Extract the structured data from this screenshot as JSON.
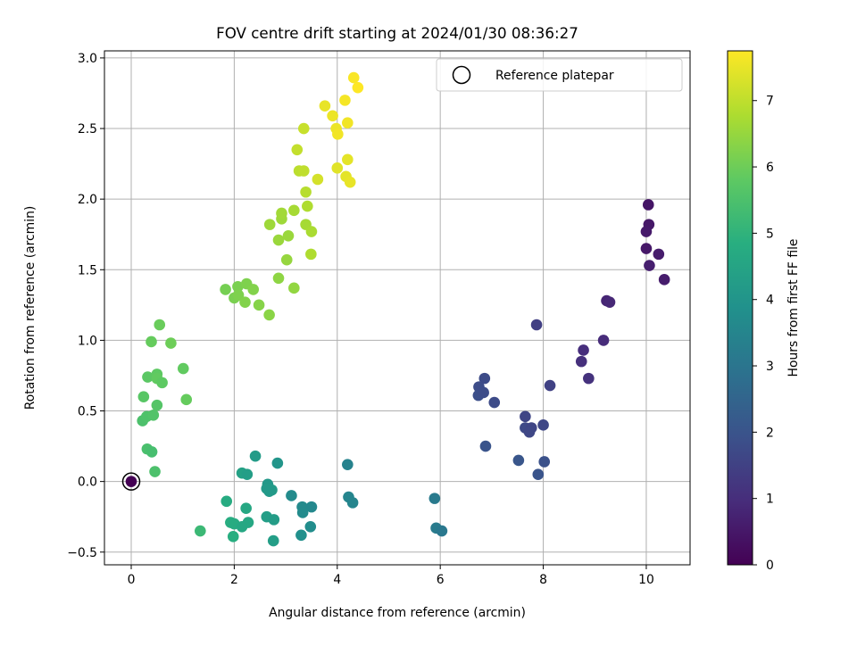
{
  "chart_data": {
    "type": "scatter",
    "title": "FOV centre drift starting at 2024/01/30 08:36:27",
    "xlabel": "Angular distance from reference (arcmin)",
    "ylabel": "Rotation from reference (arcmin)",
    "xlim": [
      -0.52,
      10.85
    ],
    "ylim": [
      -0.59,
      3.05
    ],
    "xticks": [
      0,
      2,
      4,
      6,
      8,
      10
    ],
    "yticks": [
      -0.5,
      0.0,
      0.5,
      1.0,
      1.5,
      2.0,
      2.5,
      3.0
    ],
    "xtick_labels": [
      "0",
      "2",
      "4",
      "6",
      "8",
      "10"
    ],
    "ytick_labels": [
      "−0.5",
      "0.0",
      "0.5",
      "1.0",
      "1.5",
      "2.0",
      "2.5",
      "3.0"
    ],
    "grid": true,
    "legend": {
      "placement": "top-right",
      "entries": [
        "Reference platepar"
      ]
    },
    "colorbar": {
      "label": "Hours from first FF file",
      "colormap": "viridis",
      "range": [
        0,
        7.75
      ],
      "ticks": [
        0,
        1,
        2,
        3,
        4,
        5,
        6,
        7
      ],
      "tick_labels": [
        "0",
        "1",
        "2",
        "3",
        "4",
        "5",
        "6",
        "7"
      ]
    },
    "reference_point": {
      "name": "Reference platepar",
      "x": 0,
      "y": 0
    },
    "points": [
      {
        "x": 10.04,
        "y": 1.96,
        "hours": 0.45
      },
      {
        "x": 10.05,
        "y": 1.82,
        "hours": 0.5
      },
      {
        "x": 10.0,
        "y": 1.77,
        "hours": 0.55
      },
      {
        "x": 10.0,
        "y": 1.65,
        "hours": 0.5
      },
      {
        "x": 10.24,
        "y": 1.61,
        "hours": 0.6
      },
      {
        "x": 10.06,
        "y": 1.53,
        "hours": 0.65
      },
      {
        "x": 10.35,
        "y": 1.43,
        "hours": 0.6
      },
      {
        "x": 9.23,
        "y": 1.28,
        "hours": 0.8
      },
      {
        "x": 9.29,
        "y": 1.27,
        "hours": 0.85
      },
      {
        "x": 9.17,
        "y": 1.0,
        "hours": 0.95
      },
      {
        "x": 8.78,
        "y": 0.93,
        "hours": 1.0
      },
      {
        "x": 8.74,
        "y": 0.85,
        "hours": 1.05
      },
      {
        "x": 8.88,
        "y": 0.73,
        "hours": 1.1
      },
      {
        "x": 7.87,
        "y": 1.11,
        "hours": 1.45
      },
      {
        "x": 8.13,
        "y": 0.68,
        "hours": 1.5
      },
      {
        "x": 6.86,
        "y": 0.73,
        "hours": 1.75
      },
      {
        "x": 6.75,
        "y": 0.67,
        "hours": 1.8
      },
      {
        "x": 6.74,
        "y": 0.61,
        "hours": 1.85
      },
      {
        "x": 6.84,
        "y": 0.63,
        "hours": 1.8
      },
      {
        "x": 7.05,
        "y": 0.56,
        "hours": 1.75
      },
      {
        "x": 7.65,
        "y": 0.46,
        "hours": 1.6
      },
      {
        "x": 7.65,
        "y": 0.38,
        "hours": 1.7
      },
      {
        "x": 7.77,
        "y": 0.38,
        "hours": 1.6
      },
      {
        "x": 7.73,
        "y": 0.35,
        "hours": 1.65
      },
      {
        "x": 8.0,
        "y": 0.4,
        "hours": 1.65
      },
      {
        "x": 6.88,
        "y": 0.25,
        "hours": 2.0
      },
      {
        "x": 7.52,
        "y": 0.15,
        "hours": 2.05
      },
      {
        "x": 8.02,
        "y": 0.14,
        "hours": 1.9
      },
      {
        "x": 7.9,
        "y": 0.05,
        "hours": 2.0
      },
      {
        "x": 5.89,
        "y": -0.12,
        "hours": 3.15
      },
      {
        "x": 5.92,
        "y": -0.33,
        "hours": 3.2
      },
      {
        "x": 6.03,
        "y": -0.35,
        "hours": 3.1
      },
      {
        "x": 4.2,
        "y": 0.12,
        "hours": 3.4
      },
      {
        "x": 4.22,
        "y": -0.11,
        "hours": 3.5
      },
      {
        "x": 4.3,
        "y": -0.15,
        "hours": 3.5
      },
      {
        "x": 3.11,
        "y": -0.1,
        "hours": 3.7
      },
      {
        "x": 3.32,
        "y": -0.18,
        "hours": 3.65
      },
      {
        "x": 3.5,
        "y": -0.18,
        "hours": 3.6
      },
      {
        "x": 3.33,
        "y": -0.22,
        "hours": 3.7
      },
      {
        "x": 3.48,
        "y": -0.32,
        "hours": 3.75
      },
      {
        "x": 3.3,
        "y": -0.38,
        "hours": 3.85
      },
      {
        "x": 2.84,
        "y": 0.13,
        "hours": 4.0
      },
      {
        "x": 2.41,
        "y": 0.18,
        "hours": 4.2
      },
      {
        "x": 2.15,
        "y": 0.06,
        "hours": 4.4
      },
      {
        "x": 2.25,
        "y": 0.05,
        "hours": 4.3
      },
      {
        "x": 2.65,
        "y": -0.02,
        "hours": 4.1
      },
      {
        "x": 2.63,
        "y": -0.05,
        "hours": 4.15
      },
      {
        "x": 2.73,
        "y": -0.06,
        "hours": 4.2
      },
      {
        "x": 2.68,
        "y": -0.07,
        "hours": 4.15
      },
      {
        "x": 1.85,
        "y": -0.14,
        "hours": 4.75
      },
      {
        "x": 2.23,
        "y": -0.19,
        "hours": 4.6
      },
      {
        "x": 2.63,
        "y": -0.25,
        "hours": 4.3
      },
      {
        "x": 2.77,
        "y": -0.27,
        "hours": 4.25
      },
      {
        "x": 1.93,
        "y": -0.29,
        "hours": 4.8
      },
      {
        "x": 2.0,
        "y": -0.3,
        "hours": 4.75
      },
      {
        "x": 2.27,
        "y": -0.29,
        "hours": 4.6
      },
      {
        "x": 2.15,
        "y": -0.32,
        "hours": 4.6
      },
      {
        "x": 1.98,
        "y": -0.39,
        "hours": 4.85
      },
      {
        "x": 2.76,
        "y": -0.42,
        "hours": 4.3
      },
      {
        "x": 1.34,
        "y": -0.35,
        "hours": 5.2
      },
      {
        "x": 0,
        "y": 0,
        "hours": 0.0
      },
      {
        "x": 0.46,
        "y": 0.07,
        "hours": 5.5
      },
      {
        "x": 0.31,
        "y": 0.23,
        "hours": 5.45
      },
      {
        "x": 0.4,
        "y": 0.21,
        "hours": 5.4
      },
      {
        "x": 0.22,
        "y": 0.43,
        "hours": 5.5
      },
      {
        "x": 0.3,
        "y": 0.46,
        "hours": 5.55
      },
      {
        "x": 0.43,
        "y": 0.47,
        "hours": 5.6
      },
      {
        "x": 0.5,
        "y": 0.54,
        "hours": 5.65
      },
      {
        "x": 0.24,
        "y": 0.6,
        "hours": 5.7
      },
      {
        "x": 0.32,
        "y": 0.74,
        "hours": 5.75
      },
      {
        "x": 0.5,
        "y": 0.76,
        "hours": 5.8
      },
      {
        "x": 0.5,
        "y": 0.73,
        "hours": 5.85
      },
      {
        "x": 0.6,
        "y": 0.7,
        "hours": 5.8
      },
      {
        "x": 1.01,
        "y": 0.8,
        "hours": 5.85
      },
      {
        "x": 1.07,
        "y": 0.58,
        "hours": 5.9
      },
      {
        "x": 0.39,
        "y": 0.99,
        "hours": 5.9
      },
      {
        "x": 0.55,
        "y": 1.11,
        "hours": 5.95
      },
      {
        "x": 0.77,
        "y": 0.98,
        "hours": 6.0
      },
      {
        "x": 1.83,
        "y": 1.36,
        "hours": 6.1
      },
      {
        "x": 2.07,
        "y": 1.38,
        "hours": 6.15
      },
      {
        "x": 2.24,
        "y": 1.4,
        "hours": 6.2
      },
      {
        "x": 2.37,
        "y": 1.36,
        "hours": 6.25
      },
      {
        "x": 2.0,
        "y": 1.3,
        "hours": 6.15
      },
      {
        "x": 2.08,
        "y": 1.32,
        "hours": 6.2
      },
      {
        "x": 2.21,
        "y": 1.27,
        "hours": 6.25
      },
      {
        "x": 2.48,
        "y": 1.25,
        "hours": 6.3
      },
      {
        "x": 2.68,
        "y": 1.18,
        "hours": 6.35
      },
      {
        "x": 2.86,
        "y": 1.44,
        "hours": 6.4
      },
      {
        "x": 3.16,
        "y": 1.37,
        "hours": 6.45
      },
      {
        "x": 3.02,
        "y": 1.57,
        "hours": 6.5
      },
      {
        "x": 2.86,
        "y": 1.71,
        "hours": 6.55
      },
      {
        "x": 3.05,
        "y": 1.74,
        "hours": 6.55
      },
      {
        "x": 2.69,
        "y": 1.82,
        "hours": 6.6
      },
      {
        "x": 2.92,
        "y": 1.86,
        "hours": 6.6
      },
      {
        "x": 2.92,
        "y": 1.9,
        "hours": 6.65
      },
      {
        "x": 3.16,
        "y": 1.92,
        "hours": 6.7
      },
      {
        "x": 3.39,
        "y": 1.82,
        "hours": 6.7
      },
      {
        "x": 3.5,
        "y": 1.77,
        "hours": 6.75
      },
      {
        "x": 3.49,
        "y": 1.61,
        "hours": 6.8
      },
      {
        "x": 3.42,
        "y": 1.95,
        "hours": 6.8
      },
      {
        "x": 3.39,
        "y": 2.05,
        "hours": 6.9
      },
      {
        "x": 3.26,
        "y": 2.2,
        "hours": 6.95
      },
      {
        "x": 3.35,
        "y": 2.2,
        "hours": 7.0
      },
      {
        "x": 3.22,
        "y": 2.35,
        "hours": 7.05
      },
      {
        "x": 3.35,
        "y": 2.5,
        "hours": 7.1
      },
      {
        "x": 3.62,
        "y": 2.14,
        "hours": 7.25
      },
      {
        "x": 4.0,
        "y": 2.22,
        "hours": 7.4
      },
      {
        "x": 4.17,
        "y": 2.16,
        "hours": 7.45
      },
      {
        "x": 4.25,
        "y": 2.12,
        "hours": 7.5
      },
      {
        "x": 4.2,
        "y": 2.28,
        "hours": 7.45
      },
      {
        "x": 3.76,
        "y": 2.66,
        "hours": 7.5
      },
      {
        "x": 3.91,
        "y": 2.59,
        "hours": 7.55
      },
      {
        "x": 3.98,
        "y": 2.5,
        "hours": 7.55
      },
      {
        "x": 4.01,
        "y": 2.46,
        "hours": 7.6
      },
      {
        "x": 4.2,
        "y": 2.54,
        "hours": 7.6
      },
      {
        "x": 4.15,
        "y": 2.7,
        "hours": 7.65
      },
      {
        "x": 4.32,
        "y": 2.86,
        "hours": 7.7
      },
      {
        "x": 4.4,
        "y": 2.79,
        "hours": 7.75
      }
    ]
  }
}
